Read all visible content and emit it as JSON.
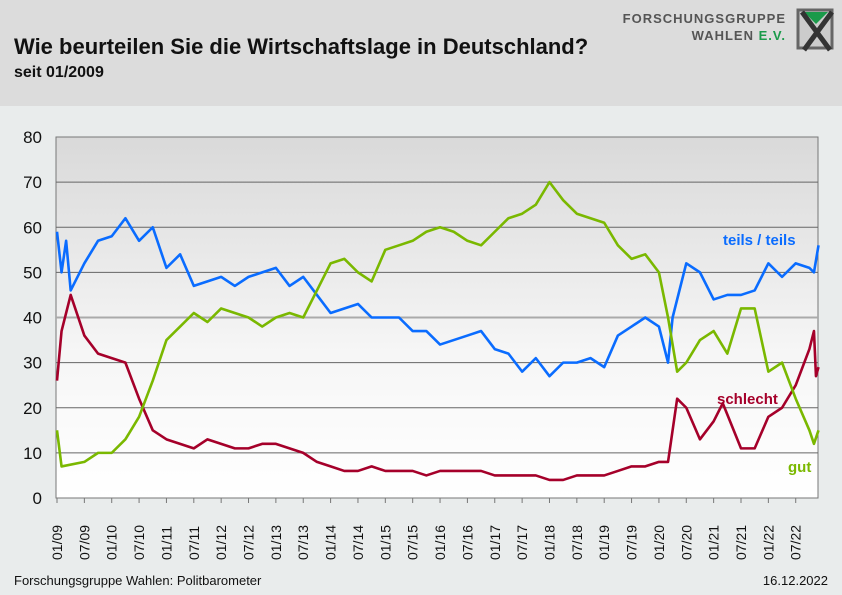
{
  "header": {
    "title": "Wie beurteilen Sie die Wirtschaftslage in Deutschland?",
    "subtitle": "seit 01/2009",
    "logo": {
      "line1": "FORSCHUNGSGRUPPE",
      "line2": "WAHLEN",
      "line2_suffix": "E.V."
    }
  },
  "footer": {
    "source": "Forschungsgruppe Wahlen: Politbarometer",
    "date": "16.12.2022"
  },
  "chart_data": {
    "type": "line",
    "title": "Wie beurteilen Sie die Wirtschaftslage in Deutschland?",
    "subtitle": "seit 01/2009",
    "ylim": [
      0,
      80
    ],
    "yticks": [
      0,
      10,
      20,
      30,
      40,
      50,
      60,
      70,
      80
    ],
    "xlim": [
      "2009-01",
      "2022-12"
    ],
    "xticks": [
      "01/09",
      "07/09",
      "01/10",
      "07/10",
      "01/11",
      "07/11",
      "01/12",
      "07/12",
      "01/13",
      "07/13",
      "01/14",
      "07/14",
      "01/15",
      "07/15",
      "01/16",
      "07/16",
      "01/17",
      "07/17",
      "01/18",
      "07/18",
      "01/19",
      "07/19",
      "01/20",
      "07/20",
      "01/21",
      "07/21",
      "01/22",
      "07/22"
    ],
    "grid": true,
    "series": [
      {
        "name": "teils / teils",
        "color": "#0a6cff",
        "points": [
          [
            "2009-01",
            59
          ],
          [
            "2009-02",
            50
          ],
          [
            "2009-03",
            57
          ],
          [
            "2009-04",
            46
          ],
          [
            "2009-07",
            52
          ],
          [
            "2009-10",
            57
          ],
          [
            "2010-01",
            58
          ],
          [
            "2010-04",
            62
          ],
          [
            "2010-07",
            57
          ],
          [
            "2010-10",
            60
          ],
          [
            "2011-01",
            51
          ],
          [
            "2011-04",
            54
          ],
          [
            "2011-07",
            47
          ],
          [
            "2011-10",
            48
          ],
          [
            "2012-01",
            49
          ],
          [
            "2012-04",
            47
          ],
          [
            "2012-07",
            49
          ],
          [
            "2012-10",
            50
          ],
          [
            "2013-01",
            51
          ],
          [
            "2013-04",
            47
          ],
          [
            "2013-07",
            49
          ],
          [
            "2013-10",
            45
          ],
          [
            "2014-01",
            41
          ],
          [
            "2014-04",
            42
          ],
          [
            "2014-07",
            43
          ],
          [
            "2014-10",
            40
          ],
          [
            "2015-01",
            40
          ],
          [
            "2015-04",
            40
          ],
          [
            "2015-07",
            37
          ],
          [
            "2015-10",
            37
          ],
          [
            "2016-01",
            34
          ],
          [
            "2016-04",
            35
          ],
          [
            "2016-07",
            36
          ],
          [
            "2016-10",
            37
          ],
          [
            "2017-01",
            33
          ],
          [
            "2017-04",
            32
          ],
          [
            "2017-07",
            28
          ],
          [
            "2017-10",
            31
          ],
          [
            "2018-01",
            27
          ],
          [
            "2018-04",
            30
          ],
          [
            "2018-07",
            30
          ],
          [
            "2018-10",
            31
          ],
          [
            "2019-01",
            29
          ],
          [
            "2019-04",
            36
          ],
          [
            "2019-07",
            38
          ],
          [
            "2019-10",
            40
          ],
          [
            "2020-01",
            38
          ],
          [
            "2020-03",
            30
          ],
          [
            "2020-04",
            40
          ],
          [
            "2020-07",
            52
          ],
          [
            "2020-10",
            50
          ],
          [
            "2021-01",
            44
          ],
          [
            "2021-04",
            45
          ],
          [
            "2021-07",
            45
          ],
          [
            "2021-10",
            46
          ],
          [
            "2022-01",
            52
          ],
          [
            "2022-04",
            49
          ],
          [
            "2022-07",
            52
          ],
          [
            "2022-10",
            51
          ],
          [
            "2022-11",
            50
          ],
          [
            "2022-12",
            56
          ]
        ]
      },
      {
        "name": "schlecht",
        "color": "#a5002a",
        "points": [
          [
            "2009-01",
            26
          ],
          [
            "2009-02",
            37
          ],
          [
            "2009-04",
            45
          ],
          [
            "2009-07",
            36
          ],
          [
            "2009-10",
            32
          ],
          [
            "2010-01",
            31
          ],
          [
            "2010-04",
            30
          ],
          [
            "2010-07",
            22
          ],
          [
            "2010-10",
            15
          ],
          [
            "2011-01",
            13
          ],
          [
            "2011-04",
            12
          ],
          [
            "2011-07",
            11
          ],
          [
            "2011-10",
            13
          ],
          [
            "2012-01",
            12
          ],
          [
            "2012-04",
            11
          ],
          [
            "2012-07",
            11
          ],
          [
            "2012-10",
            12
          ],
          [
            "2013-01",
            12
          ],
          [
            "2013-04",
            11
          ],
          [
            "2013-07",
            10
          ],
          [
            "2013-10",
            8
          ],
          [
            "2014-01",
            7
          ],
          [
            "2014-04",
            6
          ],
          [
            "2014-07",
            6
          ],
          [
            "2014-10",
            7
          ],
          [
            "2015-01",
            6
          ],
          [
            "2015-04",
            6
          ],
          [
            "2015-07",
            6
          ],
          [
            "2015-10",
            5
          ],
          [
            "2016-01",
            6
          ],
          [
            "2016-04",
            6
          ],
          [
            "2016-07",
            6
          ],
          [
            "2016-10",
            6
          ],
          [
            "2017-01",
            5
          ],
          [
            "2017-04",
            5
          ],
          [
            "2017-07",
            5
          ],
          [
            "2017-10",
            5
          ],
          [
            "2018-01",
            4
          ],
          [
            "2018-04",
            4
          ],
          [
            "2018-07",
            5
          ],
          [
            "2018-10",
            5
          ],
          [
            "2019-01",
            5
          ],
          [
            "2019-04",
            6
          ],
          [
            "2019-07",
            7
          ],
          [
            "2019-10",
            7
          ],
          [
            "2020-01",
            8
          ],
          [
            "2020-03",
            8
          ],
          [
            "2020-05",
            22
          ],
          [
            "2020-07",
            20
          ],
          [
            "2020-10",
            13
          ],
          [
            "2021-01",
            17
          ],
          [
            "2021-03",
            21
          ],
          [
            "2021-07",
            11
          ],
          [
            "2021-10",
            11
          ],
          [
            "2022-01",
            18
          ],
          [
            "2022-04",
            20
          ],
          [
            "2022-07",
            25
          ],
          [
            "2022-10",
            33
          ],
          [
            "2022-11",
            37
          ],
          [
            "2022-11",
            27
          ],
          [
            "2022-12",
            29
          ]
        ]
      },
      {
        "name": "gut",
        "color": "#7ab800",
        "points": [
          [
            "2009-01",
            15
          ],
          [
            "2009-02",
            7
          ],
          [
            "2009-07",
            8
          ],
          [
            "2009-10",
            10
          ],
          [
            "2010-01",
            10
          ],
          [
            "2010-04",
            13
          ],
          [
            "2010-07",
            18
          ],
          [
            "2010-10",
            26
          ],
          [
            "2011-01",
            35
          ],
          [
            "2011-04",
            38
          ],
          [
            "2011-07",
            41
          ],
          [
            "2011-10",
            39
          ],
          [
            "2012-01",
            42
          ],
          [
            "2012-04",
            41
          ],
          [
            "2012-07",
            40
          ],
          [
            "2012-10",
            38
          ],
          [
            "2013-01",
            40
          ],
          [
            "2013-04",
            41
          ],
          [
            "2013-07",
            40
          ],
          [
            "2013-10",
            46
          ],
          [
            "2014-01",
            52
          ],
          [
            "2014-04",
            53
          ],
          [
            "2014-07",
            50
          ],
          [
            "2014-10",
            48
          ],
          [
            "2015-01",
            55
          ],
          [
            "2015-04",
            56
          ],
          [
            "2015-07",
            57
          ],
          [
            "2015-10",
            59
          ],
          [
            "2016-01",
            60
          ],
          [
            "2016-04",
            59
          ],
          [
            "2016-07",
            57
          ],
          [
            "2016-10",
            56
          ],
          [
            "2017-01",
            59
          ],
          [
            "2017-04",
            62
          ],
          [
            "2017-07",
            63
          ],
          [
            "2017-10",
            65
          ],
          [
            "2018-01",
            70
          ],
          [
            "2018-04",
            66
          ],
          [
            "2018-07",
            63
          ],
          [
            "2018-10",
            62
          ],
          [
            "2019-01",
            61
          ],
          [
            "2019-04",
            56
          ],
          [
            "2019-07",
            53
          ],
          [
            "2019-10",
            54
          ],
          [
            "2020-01",
            50
          ],
          [
            "2020-03",
            40
          ],
          [
            "2020-05",
            28
          ],
          [
            "2020-07",
            30
          ],
          [
            "2020-10",
            35
          ],
          [
            "2021-01",
            37
          ],
          [
            "2021-04",
            32
          ],
          [
            "2021-07",
            42
          ],
          [
            "2021-10",
            42
          ],
          [
            "2022-01",
            28
          ],
          [
            "2022-04",
            30
          ],
          [
            "2022-07",
            22
          ],
          [
            "2022-10",
            15
          ],
          [
            "2022-11",
            12
          ],
          [
            "2022-12",
            15
          ]
        ]
      }
    ]
  }
}
